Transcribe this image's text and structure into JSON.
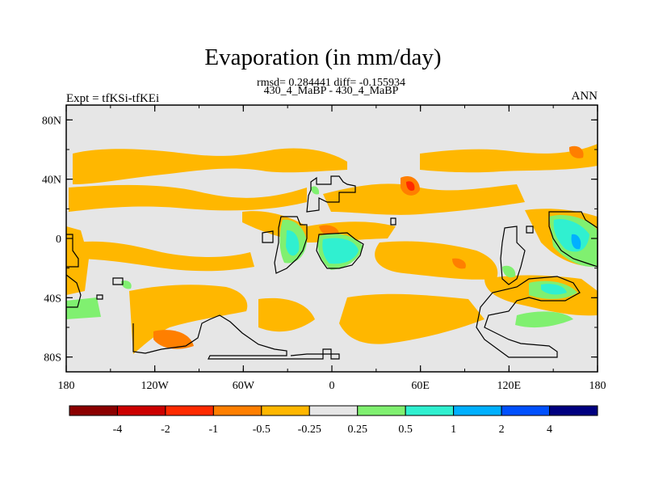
{
  "chart_data": {
    "type": "heatmap",
    "title": "Evaporation (in mm/day)",
    "subtitle_stats": "rmsd= 0.284441 diff= -0.155934",
    "subtitle_cases": "430_4_MaBP - 430_4_MaBP",
    "left_label": "Expt = tfKSi-tfKEi",
    "right_label": "ANN",
    "x_ticks": [
      "180",
      "120W",
      "60W",
      "0",
      "60E",
      "120E",
      "180"
    ],
    "y_ticks": [
      "80N",
      "40N",
      "0",
      "40S",
      "80S"
    ],
    "xlim": [
      -180,
      180
    ],
    "ylim": [
      -90,
      90
    ],
    "colorbar": {
      "labels": [
        "-4",
        "-2",
        "-1",
        "-0.5",
        "-0.25",
        "0.25",
        "0.5",
        "1",
        "2",
        "4"
      ],
      "colors": [
        "#8b0000",
        "#cc0000",
        "#ff2a00",
        "#ff7f00",
        "#ffb700",
        "#e6e6e6",
        "#80f070",
        "#30f0d0",
        "#00b0ff",
        "#0050ff",
        "#000080"
      ]
    }
  }
}
